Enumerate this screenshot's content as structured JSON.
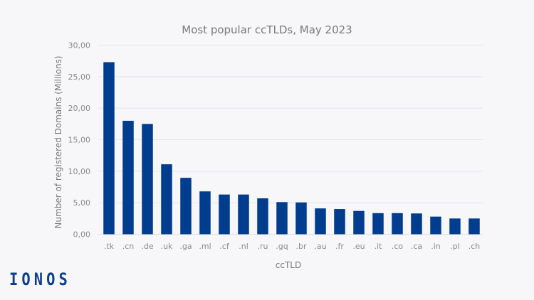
{
  "chart_data": {
    "type": "bar",
    "title": "Most popular ccTLDs, May 2023",
    "xlabel": "ccTLD",
    "ylabel": "Number of registered Domains (Millions)",
    "categories": [
      ".tk",
      ".cn",
      ".de",
      ".uk",
      ".ga",
      ".ml",
      ".cf",
      ".nl",
      ".ru",
      ".gq",
      ".br",
      ".au",
      ".fr",
      ".eu",
      ".it",
      ".co",
      ".ca",
      ".in",
      ".pl",
      ".ch"
    ],
    "values": [
      27.3,
      18.0,
      17.5,
      11.1,
      8.95,
      6.8,
      6.3,
      6.3,
      5.7,
      5.1,
      5.05,
      4.1,
      4.0,
      3.7,
      3.35,
      3.35,
      3.3,
      2.8,
      2.5,
      2.5
    ],
    "ylim": [
      0,
      30
    ],
    "yticks": [
      "0,00",
      "5,00",
      "10,00",
      "15,00",
      "20,00",
      "25,00",
      "30,00"
    ],
    "grid": true,
    "bar_color": "#003d8f"
  },
  "brand": {
    "logo": "IONOS",
    "color": "#0b3d91"
  }
}
